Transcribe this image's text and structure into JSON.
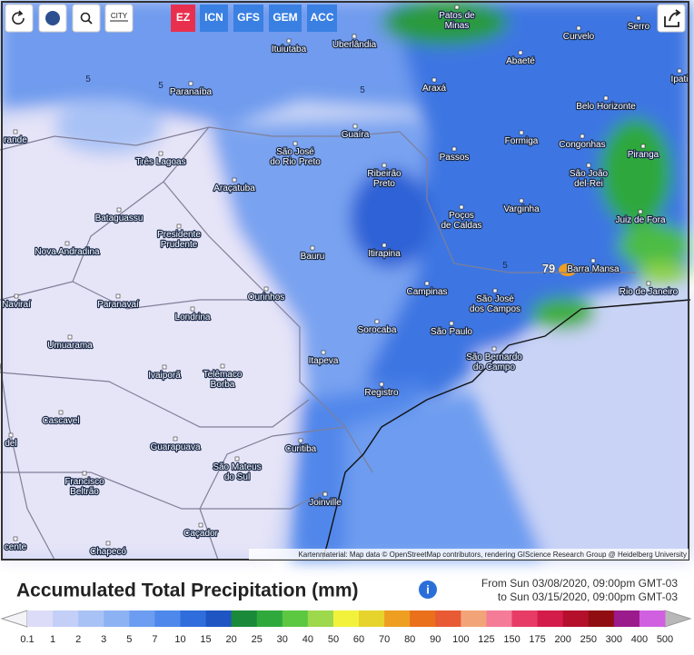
{
  "toolbar": {
    "city_button": "CITY",
    "models": [
      "EZ",
      "ICN",
      "GFS",
      "GEM",
      "ACC"
    ]
  },
  "map": {
    "cities": [
      [
        "Uberlândia"
      ],
      [
        "Patos de",
        "Minas"
      ],
      [
        "Serro"
      ],
      [
        "Curvelo"
      ],
      [
        "Ituiutaba"
      ],
      [
        "Abaeté"
      ],
      [
        "Ipati"
      ],
      [
        "Paranaíba"
      ],
      [
        "Araxá"
      ],
      [
        "Belo Horizonte"
      ],
      [
        "rande"
      ],
      [
        "Guaíra"
      ],
      [
        "São José",
        "do Rio Preto"
      ],
      [
        "Formiga"
      ],
      [
        "Congonhas"
      ],
      [
        "Passos"
      ],
      [
        "Piranga"
      ],
      [
        "Três Lagoas"
      ],
      [
        "Ribeirão",
        "Preto"
      ],
      [
        "São João",
        "del-Rei"
      ],
      [
        "Araçatuba"
      ],
      [
        "Varginha"
      ],
      [
        "Bataguassu"
      ],
      [
        "Poços",
        "de Caldas"
      ],
      [
        "Juiz de Fora"
      ],
      [
        "Presidente",
        "Prudente"
      ],
      [
        "Nova Andradina"
      ],
      [
        "Bauru"
      ],
      [
        "Itirapina"
      ],
      [
        "Barra Mansa"
      ],
      [
        "Campinas"
      ],
      [
        "Rio de Janeiro"
      ],
      [
        "São José",
        "dos Campos"
      ],
      [
        "Ourinhos"
      ],
      [
        "Paranavaí"
      ],
      [
        "Naviraí"
      ],
      [
        "Londrina"
      ],
      [
        "Sorocaba"
      ],
      [
        "São Paulo"
      ],
      [
        "Umuarama"
      ],
      [
        "São Bernardo",
        "do Campo"
      ],
      [
        "Itapeva"
      ],
      [
        "Ivaiporã"
      ],
      [
        "Telêmaco",
        "Borba"
      ],
      [
        "Registro"
      ],
      [
        "Cascavel"
      ],
      [
        "Guarapuava"
      ],
      [
        "Curitiba"
      ],
      [
        "del"
      ],
      [
        "São Mateus",
        "do Sul"
      ],
      [
        "Francisco",
        "Beltrão"
      ],
      [
        "Joinville"
      ],
      [
        "Caçador"
      ],
      [
        "cente"
      ],
      [
        "Chapecó"
      ]
    ],
    "contour_labels": [
      5,
      5,
      5,
      5,
      79
    ],
    "attribution": "Kartenmaterial: Map data © OpenStreetMap contributors, rendering GIScience Research Group @ Heidelberg University"
  },
  "footer": {
    "title": "Accumulated Total Precipitation (mm)",
    "from": "From Sun 03/08/2020, 09:00pm GMT-03",
    "to": "to Sun 03/15/2020, 09:00pm GMT-03"
  },
  "legend": {
    "ticks": [
      0.1,
      1,
      2,
      3,
      5,
      7,
      10,
      15,
      20,
      25,
      30,
      40,
      50,
      60,
      70,
      80,
      90,
      100,
      125,
      150,
      175,
      200,
      250,
      300,
      400,
      500
    ],
    "colors": [
      "#dcdcf8",
      "#c4cff8",
      "#a9c2f6",
      "#8db2f4",
      "#6c9df0",
      "#4d88ea",
      "#2f6ddc",
      "#1e55c2",
      "#1a8a3a",
      "#2fa83c",
      "#5cc842",
      "#9ed84c",
      "#f2f23c",
      "#e6d42c",
      "#ee9e20",
      "#ea701c",
      "#e85a34",
      "#f2a478",
      "#f47c98",
      "#e63c66",
      "#d41c4a",
      "#b4102c",
      "#900e12",
      "#9b1a8c",
      "#d060e0"
    ]
  }
}
